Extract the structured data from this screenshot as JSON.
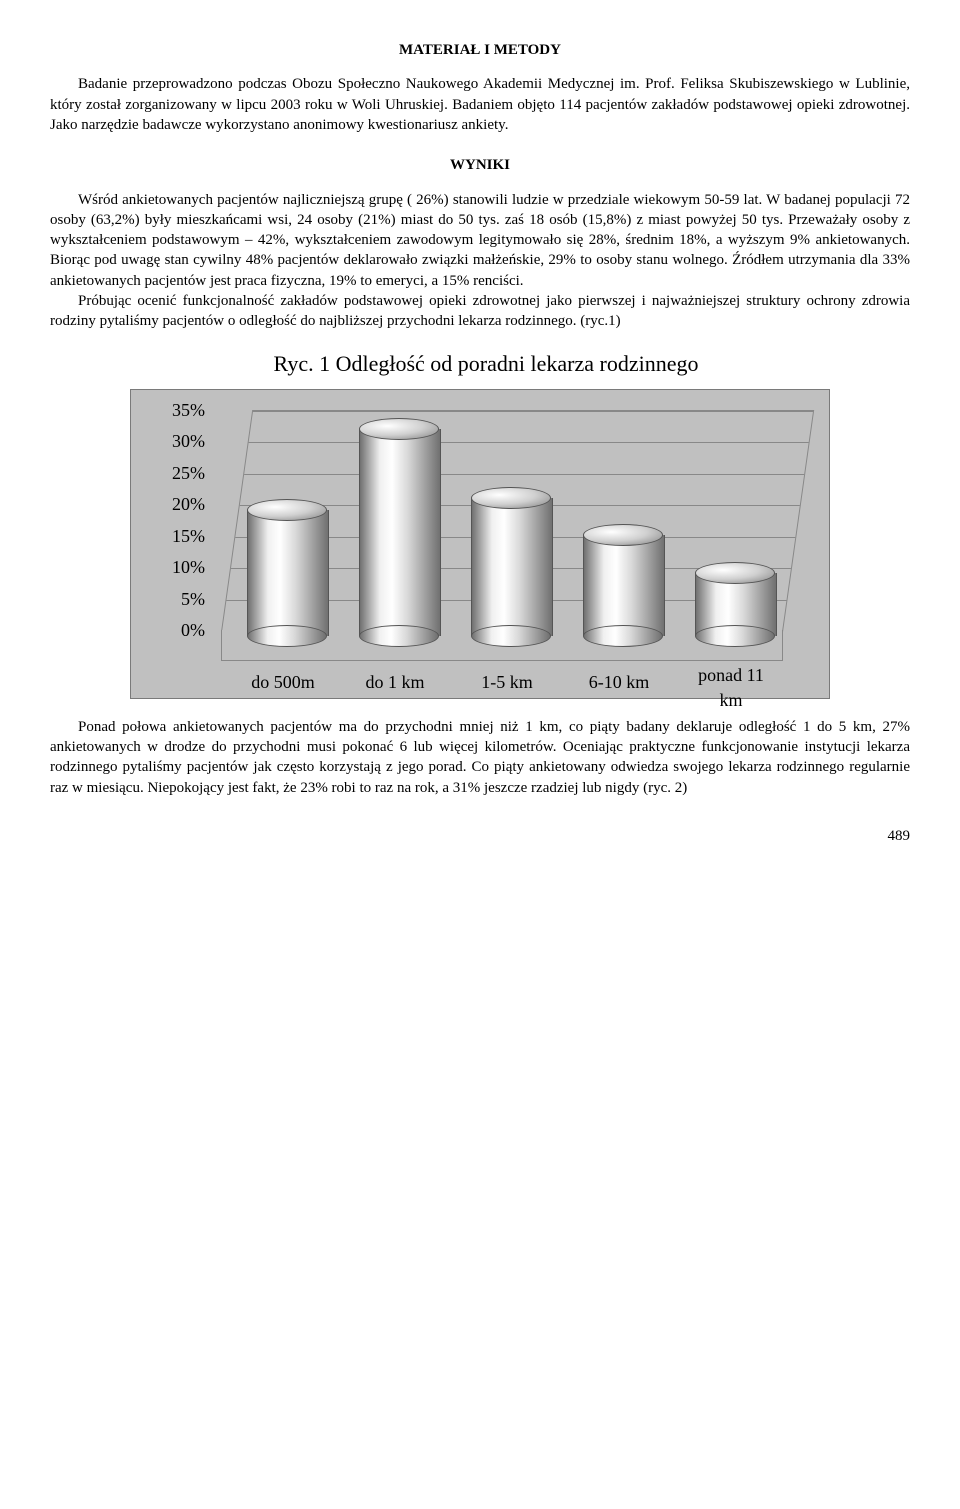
{
  "section1": {
    "heading": "MATERIAŁ I METODY",
    "para": "Badanie przeprowadzono podczas Obozu Społeczno Naukowego Akademii Medycznej im. Prof. Feliksa Skubiszewskiego w Lublinie, który został zorganizowany w lipcu 2003 roku w Woli Uhruskiej. Badaniem objęto 114 pacjentów zakładów podstawowej opieki zdrowotnej. Jako narzędzie badawcze wykorzystano anonimowy kwestionariusz ankiety."
  },
  "section2": {
    "heading": "WYNIKI",
    "para1": "Wśród  ankietowanych pacjentów najliczniejszą grupę ( 26%) stanowili ludzie w przedziale wiekowym 50-59 lat. W badanej populacji 72 osoby (63,2%) były mieszkańcami wsi, 24 osoby (21%) miast do 50 tys. zaś 18 osób (15,8%) z miast powyżej 50 tys. Przeważały osoby z wykształceniem podstawowym – 42%, wykształceniem  zawodowym legitymowało się 28%, średnim 18%, a wyższym 9% ankietowanych. Biorąc pod uwagę stan cywilny 48% pacjentów deklarowało związki małżeńskie, 29% to osoby stanu wolnego. Źródłem utrzymania dla 33% ankietowanych pacjentów jest praca fizyczna, 19% to emeryci, a 15% renciści.",
    "para2": "Próbując ocenić funkcjonalność zakładów podstawowej opieki zdrowotnej jako pierwszej i najważniejszej struktury ochrony zdrowia rodziny pytaliśmy pacjentów o odległość do najbliższej przychodni lekarza rodzinnego.  (ryc.1)"
  },
  "chart": {
    "title": "Ryc. 1 Odległość od poradni lekarza rodzinnego",
    "type": "3d-cylinder-bar",
    "categories": [
      "do 500m",
      "do 1 km",
      "1-5 km",
      "6-10 km",
      "ponad 11 km"
    ],
    "values": [
      20,
      33,
      22,
      16,
      10
    ],
    "y_ticks": [
      "0%",
      "5%",
      "10%",
      "15%",
      "20%",
      "25%",
      "30%",
      "35%"
    ],
    "y_max": 35,
    "plot_background": "#c0c0c0",
    "grid_color": "#888888",
    "cylinder_gradient": [
      "#707070",
      "#f0f0f0",
      "#ffffff",
      "#d8d8d8",
      "#707070"
    ],
    "label_fontsize": 18,
    "title_fontsize": 22
  },
  "para_after": "Ponad połowa ankietowanych pacjentów ma do przychodni mniej niż 1 km, co piąty badany deklaruje odległość 1 do 5 km, 27% ankietowanych w drodze do przychodni musi pokonać 6 lub więcej kilometrów.  Oceniając praktyczne funkcjonowanie instytucji lekarza rodzinnego  pytaliśmy pacjentów jak często korzystają z jego porad. Co piąty ankietowany odwiedza swojego lekarza rodzinnego regularnie raz w miesiącu. Niepokojący jest fakt, że 23% robi to raz na rok, a 31% jeszcze rzadziej lub nigdy (ryc. 2)",
  "page_number": "489"
}
